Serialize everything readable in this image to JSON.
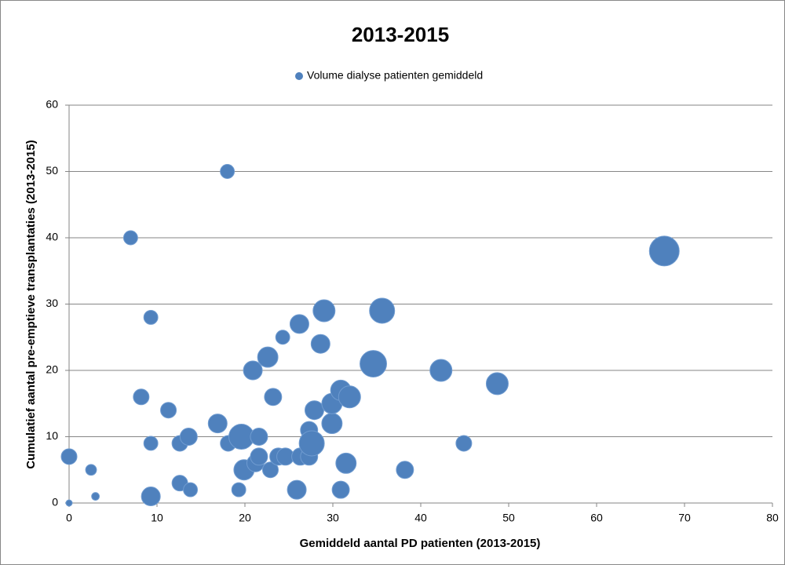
{
  "chart_data": {
    "type": "bubble",
    "title": "2013-2015",
    "x_label": "Gemiddeld aantal PD patienten (2013-2015)",
    "y_label": "Cumulatief aantal pre-emptieve transplantaties (2013-2015)",
    "xlim": [
      0,
      80
    ],
    "xticks": [
      0,
      10,
      20,
      30,
      40,
      50,
      60,
      70,
      80
    ],
    "ylim": [
      0,
      60
    ],
    "yticks": [
      0,
      10,
      20,
      30,
      40,
      50,
      60
    ],
    "grid": true,
    "legend": "top",
    "series": [
      {
        "name": "Volume dialyse patienten gemiddeld",
        "color": "#4f81bd",
        "x": [
          0,
          0,
          2.5,
          3,
          7,
          8.2,
          9.3,
          9.3,
          9.3,
          11.3,
          12.6,
          12.6,
          13.6,
          13.8,
          16.9,
          18,
          18.1,
          19.3,
          19.6,
          19.9,
          20.9,
          21.2,
          21.6,
          21.6,
          22.6,
          22.9,
          23.2,
          23.8,
          24.3,
          24.6,
          25.9,
          26.2,
          26.3,
          27.3,
          27.3,
          27.6,
          27.9,
          28.6,
          29,
          29.9,
          29.9,
          30.9,
          30.9,
          31.5,
          31.9,
          34.6,
          35.6,
          38.2,
          42.3,
          44.9,
          48.7,
          67.7
        ],
        "values": [
          0,
          7,
          5,
          1,
          40,
          16,
          28,
          9,
          1,
          14,
          9,
          3,
          10,
          2,
          12,
          50,
          9,
          2,
          10,
          5,
          20,
          6,
          7,
          10,
          22,
          5,
          16,
          7,
          25,
          7,
          2,
          27,
          7,
          7,
          11,
          9,
          14,
          24,
          29,
          12,
          15,
          2,
          17,
          6,
          16,
          21,
          29,
          5,
          20,
          9,
          18,
          38
        ],
        "sizes": [
          4,
          25,
          12,
          6,
          20,
          25,
          20,
          20,
          36,
          25,
          25,
          25,
          30,
          20,
          36,
          20,
          25,
          20,
          64,
          42,
          36,
          30,
          30,
          30,
          42,
          25,
          30,
          30,
          20,
          30,
          36,
          36,
          30,
          30,
          30,
          64,
          36,
          36,
          49,
          42,
          42,
          30,
          42,
          42,
          49,
          72,
          64,
          30,
          49,
          25,
          49,
          90
        ]
      }
    ]
  }
}
